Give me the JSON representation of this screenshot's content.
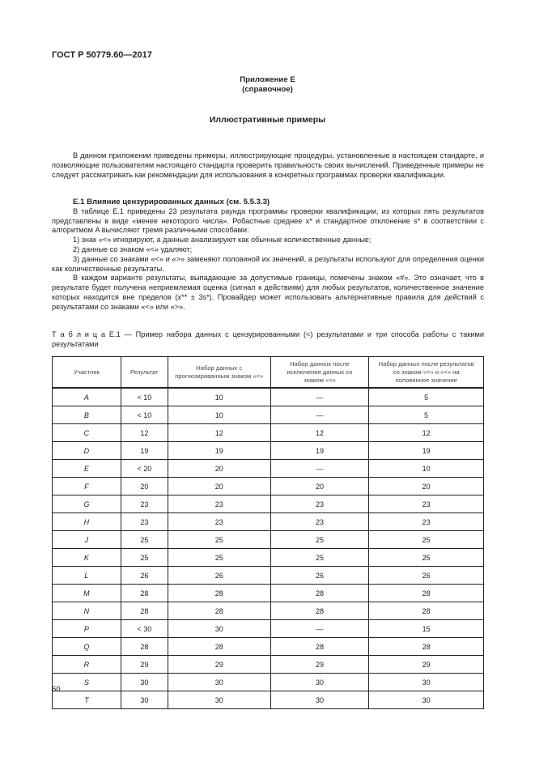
{
  "header": {
    "doc_id": "ГОСТ Р 50779.60—2017"
  },
  "appendix": {
    "title": "Приложение Е",
    "subtitle": "(справочное)",
    "heading": "Иллюстративные примеры"
  },
  "intro": "В данном приложении приведены примеры, иллюстрирующие процедуры, установленные в настоящем стандарте, и позволяющие пользователям настоящего стандарта проверить правильность своих вычислений. Приведенные примеры не следует рассматривать как рекомендации для использования в конкретных программах проверки квалификации.",
  "section": {
    "title": "Е.1 Влияние цензурированных данных (см. 5.5.3.3)",
    "p1": "В таблице Е.1 приведены 23 результата раунда программы проверки квалификации, из которых пять результатов представлены в виде «менее некоторого числа». Робастные среднее x* и стандартное отклонение s* в соответствии с алгоритмом A вычисляют тремя различными способами:",
    "items": [
      "1) знак «<» игнорируют, а данные анализируют как обычные количественные данные;",
      "2) данные со знаком «<» удаляют;",
      "3) данные со знаками «<» и «>» заменяют половиной их значений, а результаты используют для определения оценки как количественные результаты."
    ],
    "p2": "В каждом варианте результаты, выпадающие за допустимые границы, помечены знаком «#». Это означает, что в результате будет получена неприемлемая оценка (сигнал к действиям) для любых результатов, количественное значение которых находится вне пределов (x** ± 3s*). Провайдер может использовать альтернативные правила для действий с результатами со знаками «<» или «>»."
  },
  "table": {
    "caption": "Т а б л и ц а  Е.1 — Пример набора данных с цензурированными (<) результатами и три способа работы с такими результатами",
    "headers": [
      "Участник",
      "Результат",
      "Набор данных с прогнозированным знаком «<»",
      "Набор данных после исключения данных со знаком «<»",
      "Набор данных после результатов со знаком «>» и «<» на половинное значение"
    ],
    "rows": [
      [
        "A",
        "< 10",
        "10",
        "—",
        "5"
      ],
      [
        "B",
        "< 10",
        "10",
        "—",
        "5"
      ],
      [
        "C",
        "12",
        "12",
        "12",
        "12"
      ],
      [
        "D",
        "19",
        "19",
        "19",
        "19"
      ],
      [
        "E",
        "< 20",
        "20",
        "—",
        "10"
      ],
      [
        "F",
        "20",
        "20",
        "20",
        "20"
      ],
      [
        "G",
        "23",
        "23",
        "23",
        "23"
      ],
      [
        "H",
        "23",
        "23",
        "23",
        "23"
      ],
      [
        "J",
        "25",
        "25",
        "25",
        "25"
      ],
      [
        "K",
        "25",
        "25",
        "25",
        "25"
      ],
      [
        "L",
        "26",
        "26",
        "26",
        "26"
      ],
      [
        "M",
        "28",
        "28",
        "28",
        "28"
      ],
      [
        "N",
        "28",
        "28",
        "28",
        "28"
      ],
      [
        "P",
        "< 30",
        "30",
        "—",
        "15"
      ],
      [
        "Q",
        "28",
        "28",
        "28",
        "28"
      ],
      [
        "R",
        "29",
        "29",
        "29",
        "29"
      ],
      [
        "S",
        "30",
        "30",
        "30",
        "30"
      ],
      [
        "T",
        "30",
        "30",
        "30",
        "30"
      ]
    ]
  },
  "footer": {
    "page_number": "60"
  }
}
